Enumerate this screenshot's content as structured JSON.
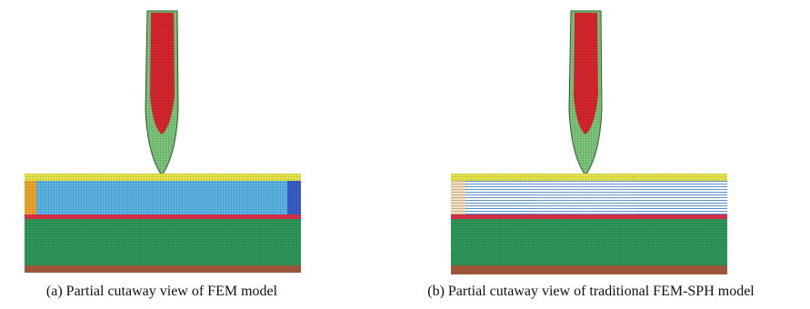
{
  "figure": {
    "panels": [
      {
        "caption": "(a) Partial cutaway view of FEM model"
      },
      {
        "caption": "(b) Partial cutaway view of traditional FEM-SPH model"
      }
    ]
  }
}
